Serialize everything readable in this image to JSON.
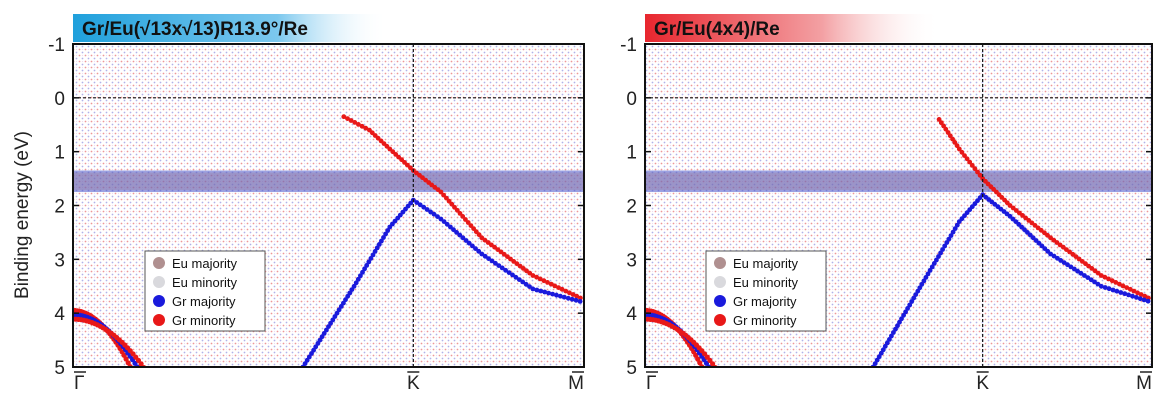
{
  "ylabel": "Binding energy (eV)",
  "panels": [
    {
      "title": "Gr/Eu(√13x√13)R13.9°/Re",
      "banner_color": "#2ea6dc",
      "legend_labels": [
        "Eu majority",
        "Eu minority",
        "Gr majority",
        "Gr minority"
      ]
    },
    {
      "title": "Gr/Eu(4x4)/Re",
      "banner_color": "#e8343a",
      "legend_labels": [
        "Eu majority",
        "Eu minority",
        "Gr majority",
        "Gr minority"
      ]
    }
  ],
  "colors": {
    "eu_majority": "#b09090",
    "eu_minority": "#d9d9dd",
    "gr_majority": "#1a1adc",
    "gr_minority": "#e81818"
  },
  "chart_data": [
    {
      "type": "scatter",
      "title": "Gr/Eu(√13x√13)R13.9°/Re",
      "xlabel": "",
      "ylabel": "Binding energy (eV)",
      "ylim": [
        5,
        -1
      ],
      "yticks": [
        -1,
        0,
        1,
        2,
        3,
        4,
        5
      ],
      "xticks": [
        "Γ",
        "K",
        "M"
      ],
      "x_positions": [
        0,
        0.666,
        1.0
      ],
      "fermi_level": 0,
      "eu_band": [
        1.35,
        1.75
      ],
      "k_crossing": 1.35,
      "legend": [
        "Eu majority",
        "Eu minority",
        "Gr majority",
        "Gr minority"
      ],
      "legend_position": "lower-left",
      "series": [
        {
          "name": "Gr minority",
          "x": [
            0.53,
            0.58,
            0.62,
            0.666,
            0.72,
            0.8,
            0.9,
            1.0
          ],
          "y": [
            0.35,
            0.6,
            0.95,
            1.35,
            1.75,
            2.6,
            3.3,
            3.75
          ]
        },
        {
          "name": "Gr majority",
          "x": [
            0.45,
            0.55,
            0.62,
            0.666,
            0.72,
            0.8,
            0.9,
            1.0
          ],
          "y": [
            5.0,
            3.5,
            2.4,
            1.9,
            2.25,
            2.9,
            3.55,
            3.8
          ]
        }
      ]
    },
    {
      "type": "scatter",
      "title": "Gr/Eu(4x4)/Re",
      "xlabel": "",
      "ylabel": "Binding energy (eV)",
      "ylim": [
        5,
        -1
      ],
      "yticks": [
        -1,
        0,
        1,
        2,
        3,
        4,
        5
      ],
      "xticks": [
        "Γ",
        "K",
        "M"
      ],
      "x_positions": [
        0,
        0.666,
        1.0
      ],
      "fermi_level": 0,
      "eu_band": [
        1.35,
        1.75
      ],
      "k_crossing": 1.5,
      "legend": [
        "Eu majority",
        "Eu minority",
        "Gr majority",
        "Gr minority"
      ],
      "legend_position": "lower-left",
      "series": [
        {
          "name": "Gr minority",
          "x": [
            0.58,
            0.62,
            0.666,
            0.72,
            0.8,
            0.9,
            1.0
          ],
          "y": [
            0.4,
            0.95,
            1.5,
            2.0,
            2.6,
            3.3,
            3.75
          ]
        },
        {
          "name": "Gr majority",
          "x": [
            0.45,
            0.55,
            0.62,
            0.666,
            0.72,
            0.8,
            0.9,
            1.0
          ],
          "y": [
            5.0,
            3.4,
            2.3,
            1.8,
            2.2,
            2.9,
            3.5,
            3.8
          ]
        }
      ]
    }
  ]
}
